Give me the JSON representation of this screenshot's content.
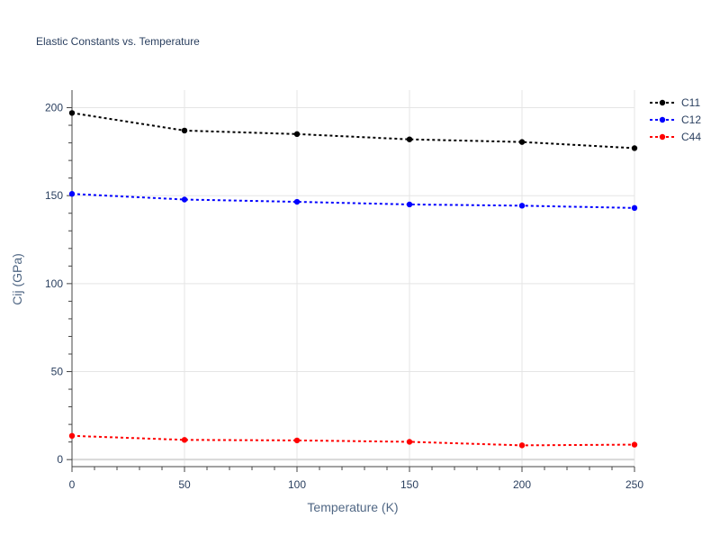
{
  "chart_data": {
    "type": "line",
    "title": "Elastic Constants vs. Temperature",
    "xlabel": "Temperature (K)",
    "ylabel": "Cij (GPa)",
    "x": [
      0,
      50,
      100,
      150,
      200,
      250
    ],
    "xlim": [
      0,
      250
    ],
    "ylim": [
      -4,
      210
    ],
    "xticks": [
      0,
      50,
      100,
      150,
      200,
      250
    ],
    "yticks": [
      0,
      50,
      100,
      150,
      200
    ],
    "grid": true,
    "legend_position": "top-right",
    "series": [
      {
        "name": "C11",
        "color": "#000000",
        "values": [
          197,
          187,
          185,
          182,
          180.5,
          177
        ]
      },
      {
        "name": "C12",
        "color": "#0000ff",
        "values": [
          151,
          147.8,
          146.5,
          145,
          144.3,
          143
        ]
      },
      {
        "name": "C44",
        "color": "#ff0000",
        "values": [
          13.5,
          11.2,
          10.9,
          10.1,
          8.1,
          8.5
        ]
      }
    ]
  }
}
